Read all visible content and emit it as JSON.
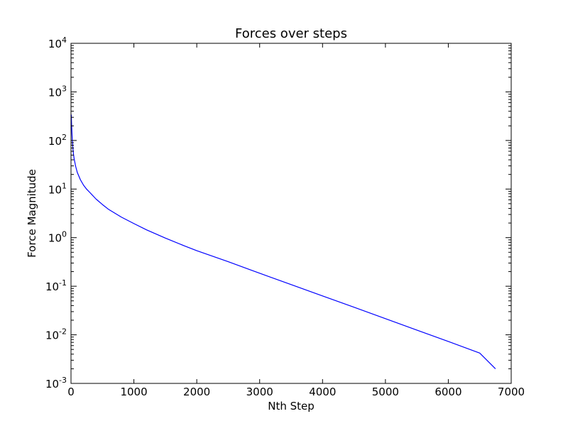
{
  "chart_data": {
    "type": "line",
    "title": "Forces over steps",
    "xlabel": "Nth Step",
    "ylabel": "Force Magnitude",
    "xlim": [
      0,
      7000
    ],
    "ylim": [
      0.001,
      10000
    ],
    "yscale": "log",
    "grid": false,
    "xticks": [
      0,
      1000,
      2000,
      3000,
      4000,
      5000,
      6000,
      7000
    ],
    "xtick_labels": [
      "0",
      "1000",
      "2000",
      "3000",
      "4000",
      "5000",
      "6000",
      "7000"
    ],
    "yticks": [
      0.001,
      0.01,
      0.1,
      1,
      10,
      100,
      1000,
      10000
    ],
    "ytick_labels": [
      {
        "base": "10",
        "exp": "-3"
      },
      {
        "base": "10",
        "exp": "-2"
      },
      {
        "base": "10",
        "exp": "-1"
      },
      {
        "base": "10",
        "exp": "0"
      },
      {
        "base": "10",
        "exp": "1"
      },
      {
        "base": "10",
        "exp": "2"
      },
      {
        "base": "10",
        "exp": "3"
      },
      {
        "base": "10",
        "exp": "4"
      }
    ],
    "series": [
      {
        "color": "#0000ff",
        "x": [
          5,
          10,
          20,
          30,
          40,
          50,
          75,
          100,
          150,
          200,
          250,
          300,
          400,
          500,
          600,
          800,
          1000,
          1200,
          1500,
          1800,
          2000,
          2500,
          3000,
          3500,
          4000,
          4500,
          5000,
          5500,
          6000,
          6500,
          6750
        ],
        "y": [
          340,
          200,
          105,
          70,
          52,
          42,
          29,
          22,
          15.5,
          12,
          9.9,
          8.5,
          6.2,
          4.8,
          3.8,
          2.65,
          1.95,
          1.45,
          0.98,
          0.68,
          0.54,
          0.32,
          0.185,
          0.108,
          0.063,
          0.037,
          0.0215,
          0.0125,
          0.0073,
          0.0042,
          0.002
        ]
      }
    ]
  }
}
